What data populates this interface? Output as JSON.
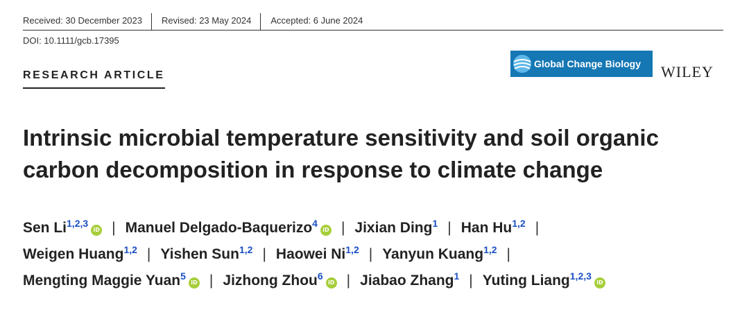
{
  "header": {
    "received": "Received: 30 December 2023",
    "revised": "Revised: 23 May 2024",
    "accepted": "Accepted: 6 June 2024",
    "doi": "DOI: 10.1111/gcb.17395"
  },
  "article_type": "RESEARCH ARTICLE",
  "journal": {
    "name": "Global Change Biology",
    "publisher": "WILEY",
    "brand_color": "#1577b4"
  },
  "title_line1": "Intrinsic microbial temperature sensitivity and soil organic",
  "title_line2": "carbon decomposition in response to climate change",
  "authors": [
    {
      "name": "Sen Li",
      "affil": "1,2,3",
      "orcid": true
    },
    {
      "name": "Manuel Delgado-Baquerizo",
      "affil": "4",
      "orcid": true
    },
    {
      "name": "Jixian Ding",
      "affil": "1",
      "orcid": false
    },
    {
      "name": "Han Hu",
      "affil": "1,2",
      "orcid": false
    },
    {
      "name": "Weigen Huang",
      "affil": "1,2",
      "orcid": false
    },
    {
      "name": "Yishen Sun",
      "affil": "1,2",
      "orcid": false
    },
    {
      "name": "Haowei Ni",
      "affil": "1,2",
      "orcid": false
    },
    {
      "name": "Yanyun Kuang",
      "affil": "1,2",
      "orcid": false
    },
    {
      "name": "Mengting Maggie Yuan",
      "affil": "5",
      "orcid": true
    },
    {
      "name": "Jizhong Zhou",
      "affil": "6",
      "orcid": true
    },
    {
      "name": "Jiabao Zhang",
      "affil": "1",
      "orcid": false
    },
    {
      "name": "Yuting Liang",
      "affil": "1,2,3",
      "orcid": true
    }
  ],
  "orcid_icon_text": "iD",
  "separator": "|"
}
